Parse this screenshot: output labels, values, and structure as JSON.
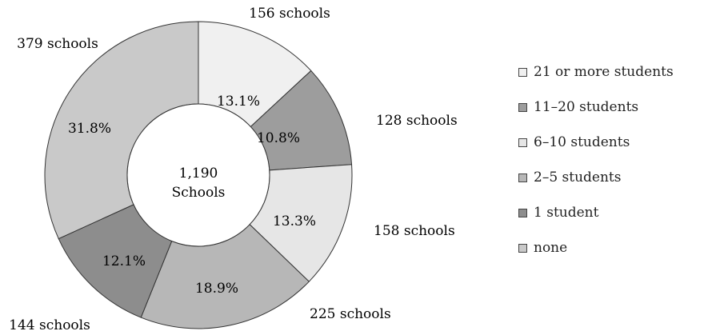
{
  "chart_data": {
    "type": "pie",
    "donut": true,
    "center_label": [
      "1,190",
      "Schools"
    ],
    "slices": [
      {
        "label": "21 or more students",
        "percent_label": "13.1%",
        "value": 13.1,
        "count_label": "156 schools",
        "color": "#f0f0f0"
      },
      {
        "label": "11–20 students",
        "percent_label": "10.8%",
        "value": 10.8,
        "count_label": "128 schools",
        "color": "#9d9d9d"
      },
      {
        "label": "6–10 students",
        "percent_label": "13.3%",
        "value": 13.3,
        "count_label": "158 schools",
        "color": "#e6e6e6"
      },
      {
        "label": "2–5 students",
        "percent_label": "18.9%",
        "value": 18.9,
        "count_label": "225 schools",
        "color": "#b7b7b7"
      },
      {
        "label": "1 student",
        "percent_label": "12.1%",
        "value": 12.1,
        "count_label": "144 schools",
        "color": "#8d8d8d"
      },
      {
        "label": "none",
        "percent_label": "31.8%",
        "value": 31.8,
        "count_label": "379 schools",
        "color": "#c9c9c9"
      }
    ],
    "legend": [
      "21 or more students",
      "11–20 students",
      "6–10 students",
      "2–5 students",
      "1 student",
      "none"
    ],
    "legend_placement": "right"
  }
}
